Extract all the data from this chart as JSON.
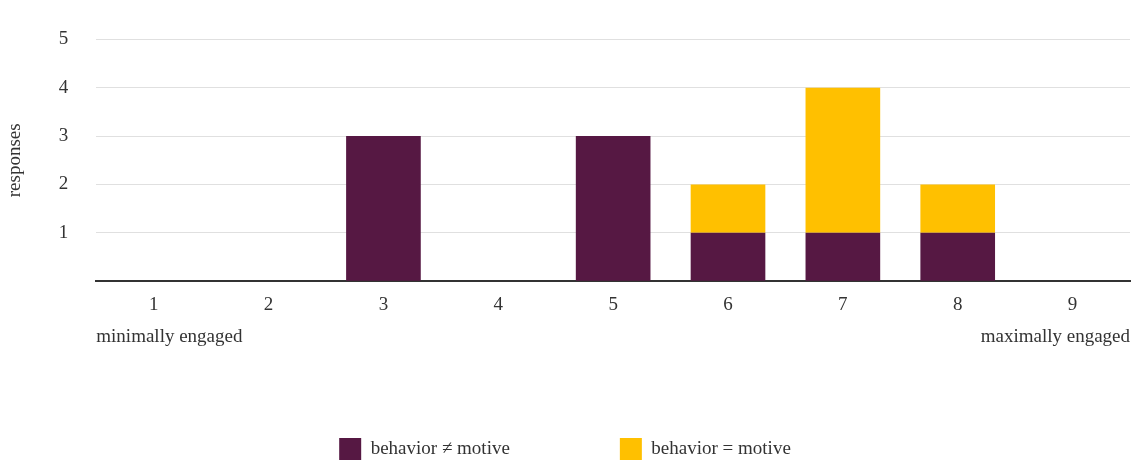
{
  "chart_data": {
    "type": "bar",
    "stacked": true,
    "ylabel": "responses",
    "categories": [
      "1",
      "2",
      "3",
      "4",
      "5",
      "6",
      "7",
      "8",
      "9"
    ],
    "series": [
      {
        "name": "behavior ≠ motive",
        "color": "#561843",
        "values": [
          0,
          0,
          3,
          0,
          3,
          1,
          1,
          1,
          0
        ]
      },
      {
        "name": "behavior = motive",
        "color": "#ffc000",
        "values": [
          0,
          0,
          0,
          0,
          0,
          1,
          3,
          1,
          0
        ]
      }
    ],
    "ylim": [
      0,
      5
    ],
    "yticks": [
      {
        "value": 0,
        "label": null
      },
      1,
      2,
      3,
      4,
      5
    ],
    "grid": "y",
    "legend": "bottom",
    "annotations": [
      "minimally engaged",
      "maximally engaged"
    ]
  }
}
